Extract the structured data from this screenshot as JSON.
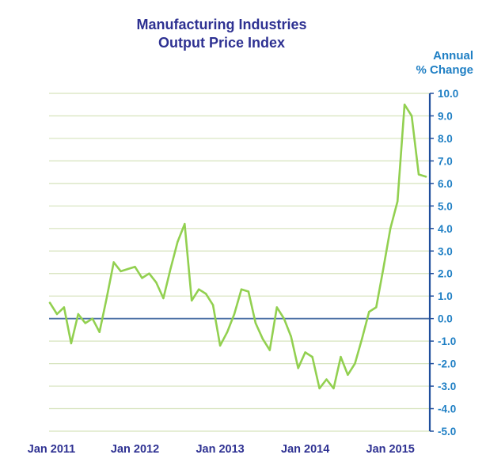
{
  "chart_data": {
    "type": "line",
    "title_line1": "Manufacturing Industries",
    "title_line2": "Output Price Index",
    "ylabel_line1": "Annual",
    "ylabel_line2": "% Change",
    "ylim": [
      -5.0,
      10.0
    ],
    "y_ticks": [
      "10.0",
      "9.0",
      "8.0",
      "7.0",
      "6.0",
      "5.0",
      "4.0",
      "3.0",
      "2.0",
      "1.0",
      "0.0",
      "-1.0",
      "-2.0",
      "-3.0",
      "-4.0",
      "-5.0"
    ],
    "x_ticks": [
      "Jan 2011",
      "Jan 2012",
      "Jan 2013",
      "Jan 2014",
      "Jan 2015"
    ],
    "colors": {
      "line": "#92d050",
      "grid": "#d6e3bc",
      "axis": "#1f4e9c",
      "zero": "#4a6fa5"
    },
    "series": [
      {
        "name": "Annual % Change",
        "values": [
          0.7,
          0.2,
          0.5,
          -1.1,
          0.2,
          -0.2,
          0.0,
          -0.6,
          0.9,
          2.5,
          2.1,
          2.2,
          2.3,
          1.8,
          2.0,
          1.6,
          0.9,
          2.2,
          3.4,
          4.2,
          0.8,
          1.3,
          1.1,
          0.6,
          -1.2,
          -0.6,
          0.2,
          1.3,
          1.2,
          -0.2,
          -0.9,
          -1.4,
          0.5,
          0.0,
          -0.8,
          -2.2,
          -1.5,
          -1.7,
          -3.1,
          -2.7,
          -3.1,
          -1.7,
          -2.5,
          -2.0,
          -0.9,
          0.3,
          0.5,
          2.2,
          4.0,
          5.2,
          9.5,
          9.0,
          6.4,
          6.3
        ]
      }
    ]
  }
}
